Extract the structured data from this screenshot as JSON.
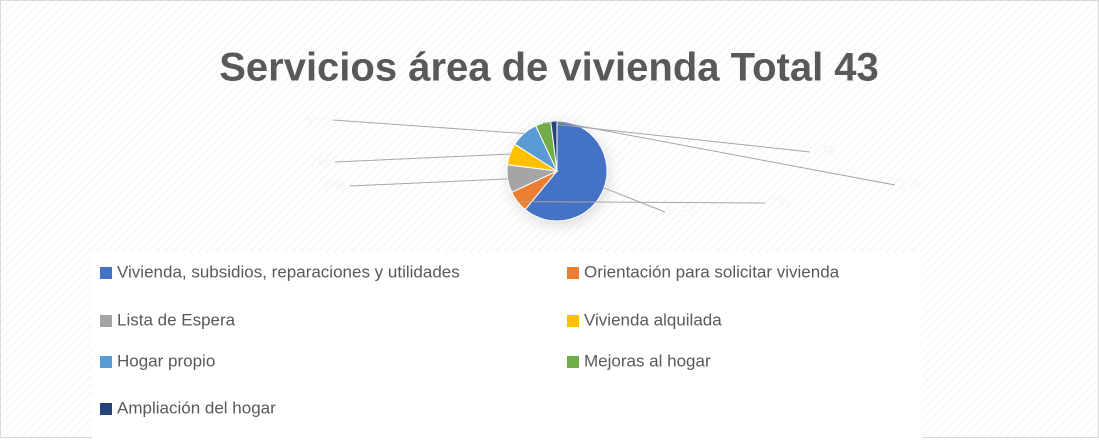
{
  "chart_data": {
    "type": "pie",
    "title": "Servicios área de vivienda Total 43",
    "categories": [
      "Vivienda, subsidios, reparaciones y utilidades",
      "Orientación para solicitar vivienda",
      "Lista de Espera",
      "Vivienda alquilada",
      "Hogar propio",
      "Mejoras al hogar",
      "Ampliación del hogar"
    ],
    "values": [
      61,
      7,
      9,
      7,
      9,
      5,
      2
    ],
    "value_labels": [
      "61%",
      "7%",
      "9%",
      "7%",
      "9%",
      "5%",
      "2%"
    ],
    "colors": [
      "#4472c4",
      "#ed7d31",
      "#a5a5a5",
      "#ffc000",
      "#5b9bd5",
      "#70ad47",
      "#264478"
    ],
    "legend": "bottom"
  }
}
